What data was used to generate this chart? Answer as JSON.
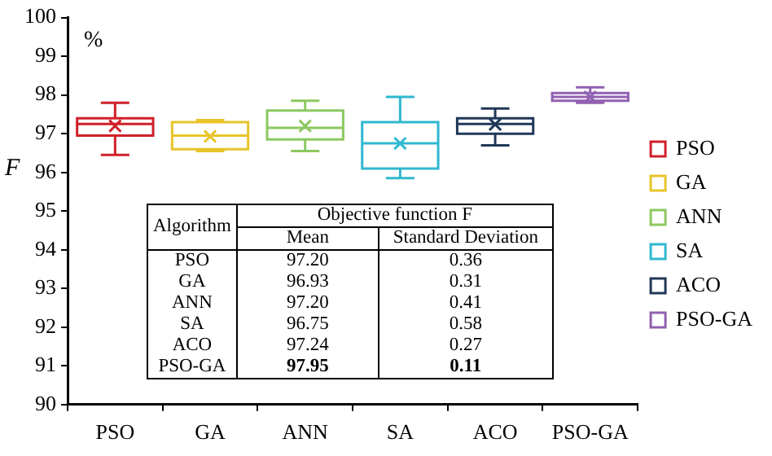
{
  "chart_data": {
    "type": "box",
    "ylabel": "F",
    "categories": [
      "PSO",
      "GA",
      "ANN",
      "SA",
      "ACO",
      "PSO-GA"
    ],
    "series": [
      {
        "name": "PSO",
        "color": "#d0202a",
        "x": [
          "PSO"
        ],
        "boxes": [
          {
            "low": 96.45,
            "q1": 96.95,
            "median": 97.25,
            "q3": 97.4,
            "high": 97.8,
            "mean": 97.2
          }
        ]
      },
      {
        "name": "GA",
        "color": "#e8c42a",
        "x": [
          "GA"
        ],
        "boxes": [
          {
            "low": 96.55,
            "q1": 96.6,
            "median": 96.95,
            "q3": 97.3,
            "high": 97.35,
            "mean": 96.93
          }
        ]
      },
      {
        "name": "ANN",
        "color": "#8cc860",
        "x": [
          "ANN"
        ],
        "boxes": [
          {
            "low": 96.55,
            "q1": 96.85,
            "median": 97.15,
            "q3": 97.6,
            "high": 97.85,
            "mean": 97.2
          }
        ]
      },
      {
        "name": "SA",
        "color": "#30b8d0",
        "x": [
          "SA"
        ],
        "boxes": [
          {
            "low": 95.85,
            "q1": 96.1,
            "median": 96.75,
            "q3": 97.3,
            "high": 97.95,
            "mean": 96.75
          }
        ]
      },
      {
        "name": "ACO",
        "color": "#203858",
        "x": [
          "ACO"
        ],
        "boxes": [
          {
            "low": 96.7,
            "q1": 97.0,
            "median": 97.25,
            "q3": 97.4,
            "high": 97.65,
            "mean": 97.24
          }
        ]
      },
      {
        "name": "PSO-GA",
        "color": "#9060b0",
        "x": [
          "PSO-GA"
        ],
        "boxes": [
          {
            "low": 97.8,
            "q1": 97.85,
            "median": 97.95,
            "q3": 98.05,
            "high": 98.2,
            "mean": 97.95
          }
        ]
      }
    ],
    "ylim": [
      90,
      100
    ],
    "yticks": [
      90,
      91,
      92,
      93,
      94,
      95,
      96,
      97,
      98,
      99,
      100
    ],
    "grid": false,
    "legend": "right",
    "marker": "cross",
    "annotations": [
      "%",
      "Algorithm",
      "Objective function F",
      "Mean",
      "Standard Deviation",
      "PSO",
      "97.20",
      "0.36",
      "GA",
      "96.93",
      "0.31",
      "ANN",
      "97.20",
      "0.41",
      "SA",
      "96.75",
      "0.58",
      "ACO",
      "97.24",
      "0.27",
      "PSO-GA",
      "97.95",
      "0.11"
    ]
  }
}
